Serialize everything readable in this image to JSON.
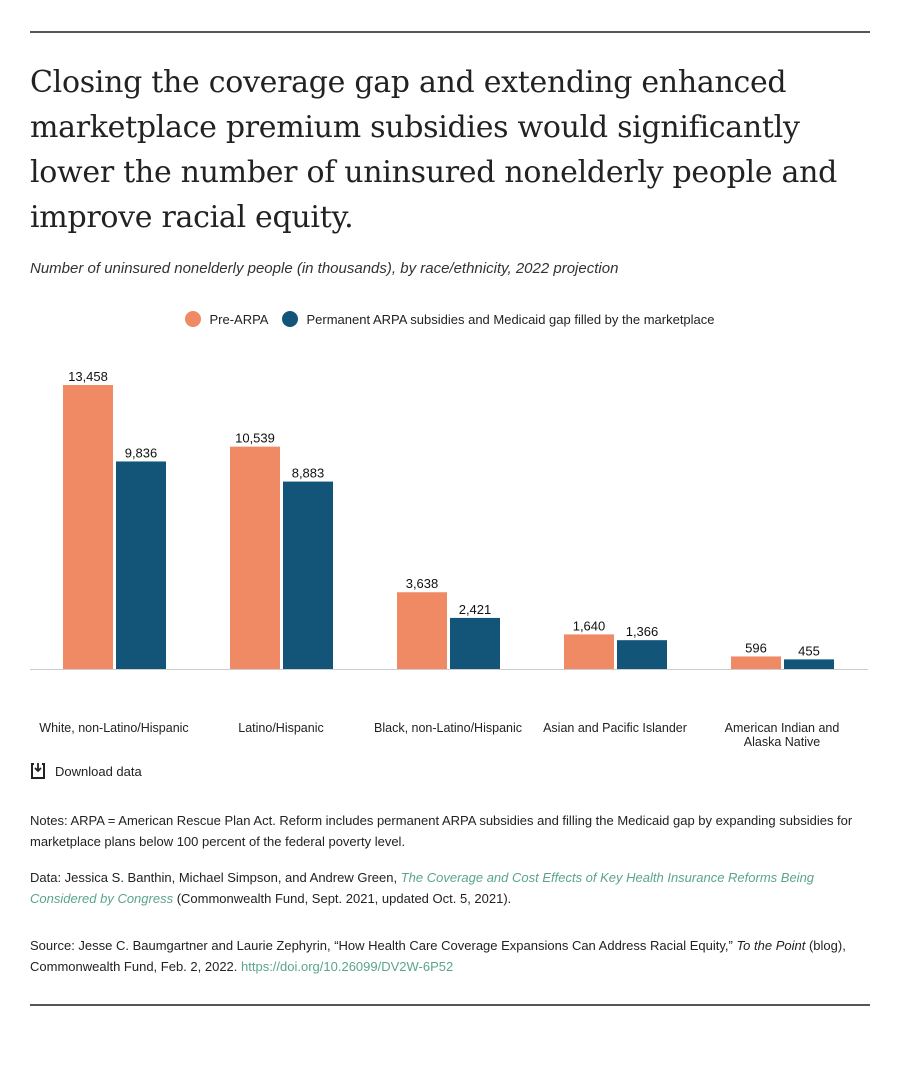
{
  "title": "Closing the coverage gap and extending enhanced marketplace premium subsidies would significantly lower the number of uninsured nonelderly people and improve racial equity.",
  "subtitle": "Number of uninsured nonelderly people (in thousands), by race/ethnicity, 2022 projection",
  "colors": {
    "pre": "#f08a65",
    "post": "#135578",
    "link": "#5aa58a"
  },
  "chart_data": {
    "type": "bar",
    "title": "Number of uninsured nonelderly people (in thousands), by race/ethnicity, 2022 projection",
    "categories": [
      "White, non-Latino/Hispanic",
      "Latino/Hispanic",
      "Black, non-Latino/Hispanic",
      "Asian and Pacific Islander",
      "American Indian and Alaska Native"
    ],
    "series": [
      {
        "name": "Pre-ARPA",
        "values": [
          13458,
          10539,
          3638,
          1640,
          596
        ],
        "labels": [
          "13,458",
          "10,539",
          "3,638",
          "1,640",
          "596"
        ]
      },
      {
        "name": "Permanent ARPA subsidies and Medicaid gap filled by the marketplace",
        "values": [
          9836,
          8883,
          2421,
          1366,
          455
        ],
        "labels": [
          "9,836",
          "8,883",
          "2,421",
          "1,366",
          "455"
        ]
      }
    ],
    "xlabel": "",
    "ylabel": "",
    "ylim": [
      0,
      14000
    ],
    "grid": false,
    "legend": "top-center"
  },
  "download_label": "Download data",
  "notes": "Notes: ARPA = American Rescue Plan Act. Reform includes permanent ARPA subsidies and filling the Medicaid gap by expanding subsidies for marketplace plans below 100 percent of the federal poverty level.",
  "data_note": {
    "prefix": "Data: Jessica S. Banthin, Michael Simpson, and Andrew Green, ",
    "link": "The Coverage and Cost Effects of Key Health Insurance Reforms Being Considered by Congress",
    "suffix": " (Commonwealth Fund, Sept. 2021, updated Oct. 5, 2021)."
  },
  "source": {
    "prefix": "Source: Jesse C. Baumgartner and Laurie Zephyrin, “How Health Care Coverage Expansions Can Address Racial Equity,” ",
    "italic": "To the Point",
    "suffix": " (blog), Commonwealth Fund, Feb. 2, 2022. ",
    "link": "https://doi.org/10.26099/DV2W-6P52"
  }
}
